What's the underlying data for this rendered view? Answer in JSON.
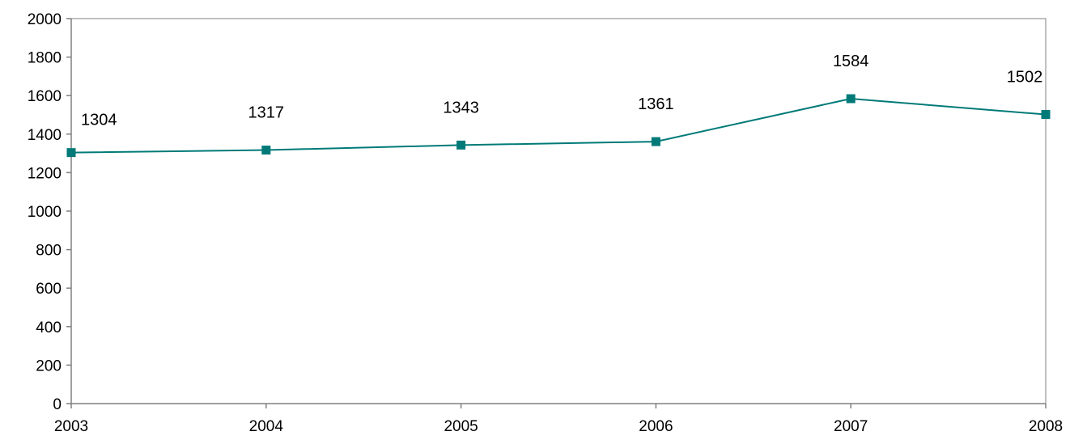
{
  "chart_data": {
    "type": "line",
    "title": "",
    "xlabel": "",
    "ylabel": "",
    "x": [
      "2003",
      "2004",
      "2005",
      "2006",
      "2007",
      "2008"
    ],
    "series": [
      {
        "values": [
          1304,
          1317,
          1343,
          1361,
          1584,
          1502
        ],
        "data_labels": [
          "1304",
          "1317",
          "1343",
          "1361",
          "1584",
          "1502"
        ]
      }
    ],
    "ylim": [
      0,
      2000
    ],
    "yticks": [
      "0",
      "200",
      "400",
      "600",
      "800",
      "1000",
      "1200",
      "1400",
      "1600",
      "1800",
      "2000"
    ],
    "grid": false,
    "legend": "none",
    "marker": "square",
    "colors": {
      "series": "#007a78",
      "axis": "#808080",
      "text": "#000000"
    }
  }
}
